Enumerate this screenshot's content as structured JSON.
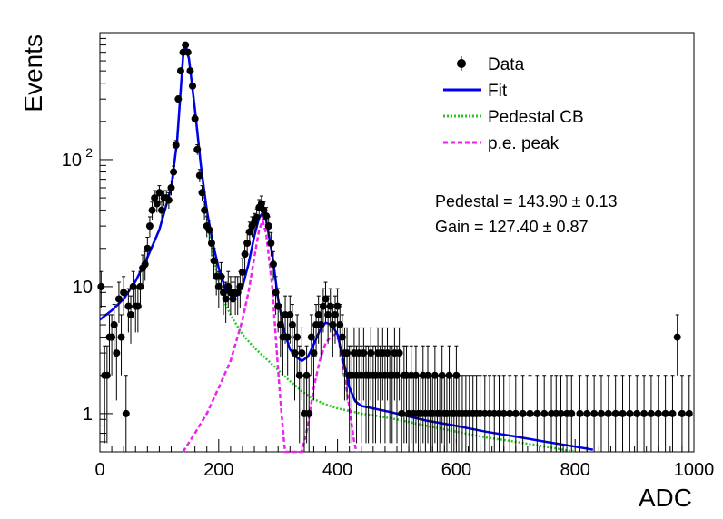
{
  "chart_data": {
    "type": "scatter",
    "title": "",
    "xlabel": "ADC",
    "ylabel": "Events",
    "xlim": [
      0,
      1000
    ],
    "ylim": [
      0.5,
      1000
    ],
    "yscale": "log",
    "x_ticks": [
      0,
      200,
      400,
      600,
      800,
      1000
    ],
    "y_ticks": [
      {
        "value": 1,
        "label": "1"
      },
      {
        "value": 10,
        "label": "10"
      },
      {
        "value": 100,
        "label": "10",
        "exp": "2"
      }
    ],
    "legend": {
      "position": "top-right",
      "entries": [
        {
          "label": "Data",
          "kind": "marker",
          "color": "#000000"
        },
        {
          "label": "Fit",
          "kind": "line",
          "color": "#0000ee"
        },
        {
          "label": "Pedestal CB",
          "kind": "dotted",
          "color": "#22cc22"
        },
        {
          "label": "p.e. peak",
          "kind": "dashed",
          "color": "#ee22ee"
        }
      ]
    },
    "annotations": [
      {
        "text": "Pedestal = 143.90 ± 0.13",
        "x": 480,
        "y": 50
      },
      {
        "text": "Gain = 127.40 ± 0.87",
        "x": 480,
        "y": 31
      }
    ],
    "series": [
      {
        "name": "Data",
        "kind": "points",
        "color": "#000000",
        "points": [
          [
            2,
            10
          ],
          [
            8,
            2
          ],
          [
            12,
            2
          ],
          [
            16,
            4
          ],
          [
            20,
            4
          ],
          [
            24,
            5
          ],
          [
            28,
            3
          ],
          [
            32,
            8
          ],
          [
            36,
            4
          ],
          [
            40,
            9
          ],
          [
            44,
            1
          ],
          [
            48,
            7
          ],
          [
            52,
            6
          ],
          [
            56,
            10
          ],
          [
            60,
            7
          ],
          [
            64,
            7
          ],
          [
            68,
            10
          ],
          [
            72,
            14
          ],
          [
            76,
            15
          ],
          [
            80,
            20
          ],
          [
            84,
            30
          ],
          [
            88,
            40
          ],
          [
            92,
            50
          ],
          [
            96,
            45
          ],
          [
            100,
            55
          ],
          [
            104,
            40
          ],
          [
            108,
            50
          ],
          [
            112,
            50
          ],
          [
            116,
            48
          ],
          [
            120,
            60
          ],
          [
            124,
            80
          ],
          [
            128,
            130
          ],
          [
            132,
            300
          ],
          [
            136,
            500
          ],
          [
            140,
            700
          ],
          [
            144,
            800
          ],
          [
            148,
            700
          ],
          [
            152,
            500
          ],
          [
            156,
            380
          ],
          [
            160,
            210
          ],
          [
            164,
            120
          ],
          [
            168,
            75
          ],
          [
            172,
            55
          ],
          [
            176,
            40
          ],
          [
            180,
            30
          ],
          [
            184,
            28
          ],
          [
            188,
            22
          ],
          [
            192,
            16
          ],
          [
            196,
            12
          ],
          [
            200,
            10
          ],
          [
            204,
            12
          ],
          [
            208,
            9
          ],
          [
            212,
            8
          ],
          [
            216,
            10
          ],
          [
            220,
            9
          ],
          [
            224,
            8
          ],
          [
            228,
            9
          ],
          [
            232,
            9
          ],
          [
            236,
            10
          ],
          [
            240,
            13
          ],
          [
            244,
            18
          ],
          [
            248,
            22
          ],
          [
            252,
            27
          ],
          [
            256,
            30
          ],
          [
            260,
            32
          ],
          [
            264,
            35
          ],
          [
            268,
            42
          ],
          [
            272,
            45
          ],
          [
            276,
            40
          ],
          [
            280,
            36
          ],
          [
            284,
            30
          ],
          [
            288,
            22
          ],
          [
            292,
            15
          ],
          [
            296,
            9
          ],
          [
            300,
            7
          ],
          [
            304,
            5
          ],
          [
            308,
            4
          ],
          [
            312,
            6
          ],
          [
            316,
            4
          ],
          [
            320,
            6
          ],
          [
            324,
            5
          ],
          [
            328,
            3
          ],
          [
            332,
            4
          ],
          [
            336,
            2
          ],
          [
            340,
            3
          ],
          [
            344,
            1
          ],
          [
            348,
            2
          ],
          [
            352,
            1
          ],
          [
            356,
            4
          ],
          [
            360,
            3
          ],
          [
            364,
            5
          ],
          [
            368,
            6
          ],
          [
            372,
            5
          ],
          [
            376,
            7
          ],
          [
            380,
            8
          ],
          [
            384,
            6
          ],
          [
            388,
            7
          ],
          [
            392,
            5
          ],
          [
            396,
            6
          ],
          [
            400,
            7
          ],
          [
            404,
            5
          ],
          [
            408,
            4
          ],
          [
            412,
            3
          ],
          [
            416,
            3
          ],
          [
            420,
            2
          ],
          [
            424,
            2
          ],
          [
            428,
            3
          ],
          [
            432,
            2
          ],
          [
            436,
            3
          ],
          [
            440,
            2
          ],
          [
            444,
            3
          ],
          [
            448,
            2
          ],
          [
            452,
            2
          ],
          [
            456,
            3
          ],
          [
            460,
            2
          ],
          [
            464,
            2
          ],
          [
            468,
            3
          ],
          [
            472,
            2
          ],
          [
            476,
            3
          ],
          [
            480,
            2
          ],
          [
            484,
            3
          ],
          [
            488,
            2
          ],
          [
            492,
            2
          ],
          [
            496,
            3
          ],
          [
            500,
            2
          ],
          [
            504,
            3
          ],
          [
            508,
            1
          ],
          [
            512,
            2
          ],
          [
            516,
            2
          ],
          [
            520,
            1
          ],
          [
            524,
            2
          ],
          [
            528,
            1
          ],
          [
            532,
            2
          ],
          [
            536,
            1
          ],
          [
            540,
            1
          ],
          [
            544,
            2
          ],
          [
            548,
            1
          ],
          [
            552,
            2
          ],
          [
            556,
            1
          ],
          [
            560,
            1
          ],
          [
            564,
            2
          ],
          [
            568,
            1
          ],
          [
            572,
            1
          ],
          [
            576,
            2
          ],
          [
            580,
            1
          ],
          [
            584,
            1
          ],
          [
            588,
            2
          ],
          [
            592,
            1
          ],
          [
            596,
            1
          ],
          [
            600,
            2
          ],
          [
            604,
            1
          ],
          [
            610,
            1
          ],
          [
            616,
            1
          ],
          [
            622,
            1
          ],
          [
            628,
            1
          ],
          [
            634,
            1
          ],
          [
            640,
            1
          ],
          [
            648,
            1
          ],
          [
            656,
            1
          ],
          [
            664,
            1
          ],
          [
            672,
            1
          ],
          [
            680,
            1
          ],
          [
            690,
            1
          ],
          [
            700,
            1
          ],
          [
            712,
            1
          ],
          [
            724,
            1
          ],
          [
            736,
            1
          ],
          [
            748,
            1
          ],
          [
            760,
            1
          ],
          [
            768,
            1
          ],
          [
            776,
            1
          ],
          [
            786,
            1
          ],
          [
            794,
            1
          ],
          [
            808,
            1
          ],
          [
            820,
            1
          ],
          [
            832,
            1
          ],
          [
            844,
            1
          ],
          [
            856,
            1
          ],
          [
            868,
            1
          ],
          [
            880,
            1
          ],
          [
            892,
            1
          ],
          [
            904,
            1
          ],
          [
            916,
            1
          ],
          [
            928,
            1
          ],
          [
            940,
            1
          ],
          [
            952,
            1
          ],
          [
            964,
            1
          ],
          [
            972,
            4
          ],
          [
            980,
            1
          ],
          [
            992,
            1
          ]
        ]
      },
      {
        "name": "Fit",
        "kind": "line",
        "color": "#0000ee",
        "points": [
          [
            0,
            5.5
          ],
          [
            20,
            6.5
          ],
          [
            40,
            8
          ],
          [
            60,
            11
          ],
          [
            80,
            17
          ],
          [
            100,
            28
          ],
          [
            120,
            60
          ],
          [
            130,
            140
          ],
          [
            140,
            650
          ],
          [
            144,
            800
          ],
          [
            150,
            620
          ],
          [
            160,
            250
          ],
          [
            170,
            90
          ],
          [
            180,
            40
          ],
          [
            190,
            22
          ],
          [
            200,
            14
          ],
          [
            210,
            10
          ],
          [
            220,
            8.5
          ],
          [
            230,
            8.5
          ],
          [
            240,
            10
          ],
          [
            250,
            15
          ],
          [
            260,
            25
          ],
          [
            268,
            35
          ],
          [
            274,
            38
          ],
          [
            280,
            33
          ],
          [
            290,
            18
          ],
          [
            300,
            8
          ],
          [
            310,
            4.5
          ],
          [
            320,
            3.2
          ],
          [
            330,
            2.8
          ],
          [
            340,
            2.6
          ],
          [
            350,
            2.8
          ],
          [
            360,
            3.5
          ],
          [
            370,
            4.5
          ],
          [
            380,
            5.2
          ],
          [
            390,
            5.0
          ],
          [
            400,
            4.2
          ],
          [
            410,
            2.6
          ],
          [
            420,
            1.6
          ],
          [
            430,
            1.25
          ],
          [
            440,
            1.15
          ],
          [
            460,
            1.1
          ],
          [
            480,
            1.05
          ],
          [
            500,
            1.0
          ],
          [
            520,
            0.95
          ],
          [
            550,
            0.88
          ],
          [
            600,
            0.8
          ],
          [
            650,
            0.72
          ],
          [
            700,
            0.66
          ],
          [
            750,
            0.6
          ],
          [
            800,
            0.55
          ],
          [
            830,
            0.52
          ]
        ]
      },
      {
        "name": "Pedestal CB",
        "kind": "line",
        "color": "#22cc22",
        "points": [
          [
            0,
            5.5
          ],
          [
            20,
            6.5
          ],
          [
            40,
            8
          ],
          [
            60,
            11
          ],
          [
            80,
            17
          ],
          [
            100,
            28
          ],
          [
            120,
            60
          ],
          [
            130,
            140
          ],
          [
            140,
            650
          ],
          [
            144,
            800
          ],
          [
            150,
            620
          ],
          [
            160,
            250
          ],
          [
            170,
            90
          ],
          [
            180,
            35
          ],
          [
            190,
            18
          ],
          [
            200,
            11
          ],
          [
            210,
            7.5
          ],
          [
            220,
            6
          ],
          [
            230,
            5
          ],
          [
            240,
            4.2
          ],
          [
            260,
            3.3
          ],
          [
            280,
            2.7
          ],
          [
            300,
            2.2
          ],
          [
            320,
            1.8
          ],
          [
            340,
            1.5
          ],
          [
            360,
            1.3
          ],
          [
            380,
            1.18
          ],
          [
            400,
            1.1
          ],
          [
            420,
            1.05
          ],
          [
            440,
            1.0
          ],
          [
            460,
            0.97
          ],
          [
            500,
            0.9
          ],
          [
            550,
            0.8
          ],
          [
            600,
            0.72
          ],
          [
            650,
            0.65
          ],
          [
            700,
            0.6
          ],
          [
            750,
            0.55
          ],
          [
            800,
            0.5
          ]
        ]
      },
      {
        "name": "p.e. peak",
        "kind": "line",
        "color": "#ee22ee",
        "points": [
          [
            140,
            0.5
          ],
          [
            160,
            0.7
          ],
          [
            180,
            1.0
          ],
          [
            200,
            1.6
          ],
          [
            220,
            2.6
          ],
          [
            240,
            5.5
          ],
          [
            250,
            9
          ],
          [
            260,
            17
          ],
          [
            268,
            28
          ],
          [
            274,
            33
          ],
          [
            280,
            26
          ],
          [
            290,
            10
          ],
          [
            300,
            2.2
          ],
          [
            305,
            1.1
          ],
          [
            310,
            0.6
          ],
          [
            312,
            0.5
          ],
          [
            340,
            0.5
          ],
          [
            350,
            0.8
          ],
          [
            360,
            1.6
          ],
          [
            370,
            2.6
          ],
          [
            380,
            3.6
          ],
          [
            390,
            4.1
          ],
          [
            396,
            4.2
          ],
          [
            402,
            3.8
          ],
          [
            410,
            2.3
          ],
          [
            420,
            1.1
          ],
          [
            428,
            0.6
          ],
          [
            432,
            0.5
          ]
        ]
      }
    ]
  }
}
